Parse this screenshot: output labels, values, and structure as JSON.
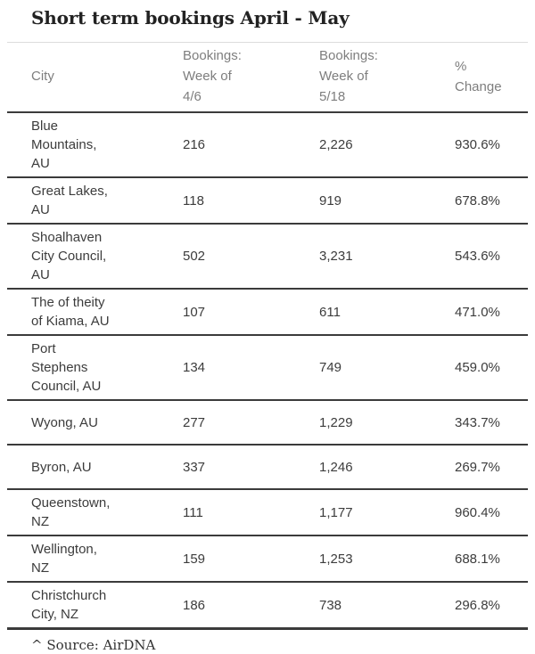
{
  "chart_data": {
    "type": "table",
    "title": "Short term bookings April - May",
    "columns": [
      "City",
      "Bookings: Week of 4/6",
      "Bookings: Week of 5/18",
      "% Change"
    ],
    "rows": [
      [
        "Blue Mountains, AU",
        "216",
        "2,226",
        "930.6%"
      ],
      [
        "Great Lakes, AU",
        "118",
        "919",
        "678.8%"
      ],
      [
        "Shoalhaven City Council, AU",
        "502",
        "3,231",
        "543.6%"
      ],
      [
        "The of theity of Kiama, AU",
        "107",
        "611",
        "471.0%"
      ],
      [
        "Port Stephens Council, AU",
        "134",
        "749",
        "459.0%"
      ],
      [
        "Wyong, AU",
        "277",
        "1,229",
        "343.7%"
      ],
      [
        "Byron, AU",
        "337",
        "1,246",
        "269.7%"
      ],
      [
        "Queenstown, NZ",
        "111",
        "1,177",
        "960.4%"
      ],
      [
        "Wellington, NZ",
        "159",
        "1,253",
        "688.1%"
      ],
      [
        "Christchurch City, NZ",
        "186",
        "738",
        "296.8%"
      ]
    ],
    "source_note": "^ Source: AirDNA"
  },
  "colors": {
    "title_text": "#222222",
    "header_text": "#7e7e7e",
    "body_text": "#3c3c3c",
    "divider_dark": "#3b3b3b",
    "divider_light": "#dcdcdc",
    "background": "#ffffff"
  }
}
